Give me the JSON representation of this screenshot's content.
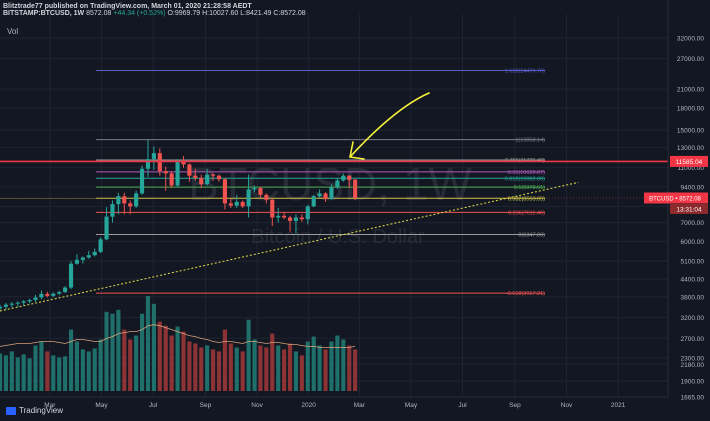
{
  "header": {
    "author_line": "Blitztrade77 published on TradingView.com, March 01, 2020 21:28:58 AEDT",
    "symbol": "BITSTAMP:BTCUSD, 1W",
    "last": "8572.08",
    "change": "+44.34 (+0.52%)",
    "ohlc": "O:9969.79 H:10027.60 L:8421.49 C:8572.08"
  },
  "volume_label": "Vol",
  "brand": "TradingView",
  "watermark": {
    "ticker": "BTCUSD, 1W",
    "description": "Bitcoin / U.S. Dollar"
  },
  "colors": {
    "background": "#131722",
    "up": "#26a69a",
    "down": "#ef5350",
    "resistance": "#f23645",
    "trendline": "#e5e04a",
    "arrow": "#f4f03c",
    "price_tag": "#f23645"
  },
  "price_tags": {
    "resistance": "11585.04",
    "current": "BTCUSD • 8572.08",
    "countdown": "13:31:04"
  },
  "chart_data": {
    "type": "candlestick",
    "scale": "log",
    "ylim": [
      1665,
      39000
    ],
    "y_ticks": [
      32000.0,
      27000.0,
      21000.0,
      18000.0,
      15000.0,
      13000.0,
      11000.0,
      9400.0,
      8000.0,
      7000.0,
      6000.0,
      5100.0,
      4400.0,
      3800.0,
      3200.0,
      2700.0,
      2300.0,
      2180.0,
      1900.0,
      1665.0
    ],
    "x_ticks": [
      {
        "label": "Mar",
        "date": "2019-03-01"
      },
      {
        "label": "May",
        "date": "2019-05-01"
      },
      {
        "label": "Jul",
        "date": "2019-07-01"
      },
      {
        "label": "Sep",
        "date": "2019-09-01"
      },
      {
        "label": "Nov",
        "date": "2019-11-01"
      },
      {
        "label": "2020",
        "date": "2020-01-01"
      },
      {
        "label": "Mar",
        "date": "2020-03-01"
      },
      {
        "label": "May",
        "date": "2020-05-01"
      },
      {
        "label": "Jul",
        "date": "2020-07-01"
      },
      {
        "label": "Sep",
        "date": "2020-09-01"
      },
      {
        "label": "Nov",
        "date": "2020-11-01"
      },
      {
        "label": "2021",
        "date": "2021-01-01"
      }
    ],
    "fib_levels": [
      {
        "label": "1.618(24479.70)",
        "value": 24479.7,
        "color": "#5b5fc7"
      },
      {
        "label": "1(13858.14)",
        "value": 13858.14,
        "color": "#787b86"
      },
      {
        "label": "0.786(11725.48)",
        "value": 11725.48,
        "color": "#9c9c9c"
      },
      {
        "label": "0.65(10628.87)",
        "value": 10628.87,
        "color": "#b05ac0"
      },
      {
        "label": "0.618(10082.86)",
        "value": 10082.86,
        "color": "#26a69a"
      },
      {
        "label": "0.5(9378.61)",
        "value": 9378.61,
        "color": "#4caf50"
      },
      {
        "label": "0.382(8553.05)",
        "value": 8553.05,
        "color": "#c9c94a"
      },
      {
        "label": "0.236(7611.46)",
        "value": 7611.46,
        "color": "#ef5350"
      },
      {
        "label": "0(6347.06)",
        "value": 6347.06,
        "color": "#9c9c9c"
      },
      {
        "label": "-0.618(3917.21)",
        "value": 3917.21,
        "color": "#ef5350"
      }
    ],
    "resistance": 11585.04,
    "trendline": [
      {
        "date": "2019-01-01",
        "price": 3380
      },
      {
        "date": "2020-11-15",
        "price": 9750
      }
    ],
    "candles": [
      {
        "date": "2019-01-01",
        "o": 3450,
        "h": 3560,
        "l": 3400,
        "c": 3500
      },
      {
        "date": "2019-01-08",
        "o": 3500,
        "h": 3610,
        "l": 3420,
        "c": 3560
      },
      {
        "date": "2019-01-15",
        "o": 3560,
        "h": 3640,
        "l": 3480,
        "c": 3590
      },
      {
        "date": "2019-01-22",
        "o": 3590,
        "h": 3660,
        "l": 3500,
        "c": 3620
      },
      {
        "date": "2019-01-29",
        "o": 3620,
        "h": 3700,
        "l": 3540,
        "c": 3660
      },
      {
        "date": "2019-02-05",
        "o": 3660,
        "h": 3740,
        "l": 3600,
        "c": 3700
      },
      {
        "date": "2019-02-12",
        "o": 3700,
        "h": 3860,
        "l": 3640,
        "c": 3780
      },
      {
        "date": "2019-02-19",
        "o": 3780,
        "h": 4000,
        "l": 3720,
        "c": 3890
      },
      {
        "date": "2019-02-26",
        "o": 3890,
        "h": 3960,
        "l": 3780,
        "c": 3830
      },
      {
        "date": "2019-03-05",
        "o": 3830,
        "h": 3940,
        "l": 3790,
        "c": 3900
      },
      {
        "date": "2019-03-12",
        "o": 3900,
        "h": 4000,
        "l": 3860,
        "c": 3950
      },
      {
        "date": "2019-03-19",
        "o": 3950,
        "h": 4150,
        "l": 3920,
        "c": 4100
      },
      {
        "date": "2019-03-26",
        "o": 4100,
        "h": 5100,
        "l": 4050,
        "c": 4990
      },
      {
        "date": "2019-04-02",
        "o": 4990,
        "h": 5400,
        "l": 4950,
        "c": 5150
      },
      {
        "date": "2019-04-09",
        "o": 5150,
        "h": 5300,
        "l": 5000,
        "c": 5250
      },
      {
        "date": "2019-04-16",
        "o": 5250,
        "h": 5550,
        "l": 5200,
        "c": 5350
      },
      {
        "date": "2019-04-23",
        "o": 5350,
        "h": 5650,
        "l": 5300,
        "c": 5500
      },
      {
        "date": "2019-04-30",
        "o": 5500,
        "h": 6200,
        "l": 5450,
        "c": 6100
      },
      {
        "date": "2019-05-07",
        "o": 6100,
        "h": 7950,
        "l": 6050,
        "c": 7350
      },
      {
        "date": "2019-05-14",
        "o": 7350,
        "h": 8400,
        "l": 7000,
        "c": 8150
      },
      {
        "date": "2019-05-21",
        "o": 8150,
        "h": 8950,
        "l": 7500,
        "c": 8700
      },
      {
        "date": "2019-05-28",
        "o": 8700,
        "h": 8950,
        "l": 7500,
        "c": 8200
      },
      {
        "date": "2019-06-04",
        "o": 8200,
        "h": 8400,
        "l": 7500,
        "c": 8000
      },
      {
        "date": "2019-06-11",
        "o": 8000,
        "h": 9100,
        "l": 7900,
        "c": 8900
      },
      {
        "date": "2019-06-18",
        "o": 8900,
        "h": 11200,
        "l": 8800,
        "c": 10900
      },
      {
        "date": "2019-06-25",
        "o": 10900,
        "h": 13850,
        "l": 10200,
        "c": 11800
      },
      {
        "date": "2019-07-02",
        "o": 11800,
        "h": 13100,
        "l": 10800,
        "c": 12400
      },
      {
        "date": "2019-07-09",
        "o": 12400,
        "h": 12900,
        "l": 10300,
        "c": 10700
      },
      {
        "date": "2019-07-16",
        "o": 10700,
        "h": 11100,
        "l": 9100,
        "c": 10500
      },
      {
        "date": "2019-07-23",
        "o": 10500,
        "h": 10700,
        "l": 9300,
        "c": 9500
      },
      {
        "date": "2019-07-30",
        "o": 9500,
        "h": 11800,
        "l": 9400,
        "c": 11600
      },
      {
        "date": "2019-08-06",
        "o": 11600,
        "h": 12100,
        "l": 11000,
        "c": 11300
      },
      {
        "date": "2019-08-13",
        "o": 11300,
        "h": 11400,
        "l": 9800,
        "c": 10300
      },
      {
        "date": "2019-08-20",
        "o": 10300,
        "h": 10900,
        "l": 9900,
        "c": 10100
      },
      {
        "date": "2019-08-27",
        "o": 10100,
        "h": 10400,
        "l": 9300,
        "c": 9600
      },
      {
        "date": "2019-09-03",
        "o": 9600,
        "h": 10900,
        "l": 9500,
        "c": 10400
      },
      {
        "date": "2019-09-10",
        "o": 10400,
        "h": 10500,
        "l": 9900,
        "c": 10300
      },
      {
        "date": "2019-09-17",
        "o": 10300,
        "h": 10400,
        "l": 9800,
        "c": 10000
      },
      {
        "date": "2019-09-24",
        "o": 10000,
        "h": 10100,
        "l": 7800,
        "c": 8200
      },
      {
        "date": "2019-10-01",
        "o": 8200,
        "h": 8500,
        "l": 7900,
        "c": 8050
      },
      {
        "date": "2019-10-08",
        "o": 8050,
        "h": 8800,
        "l": 7900,
        "c": 8300
      },
      {
        "date": "2019-10-15",
        "o": 8300,
        "h": 8400,
        "l": 7900,
        "c": 8000
      },
      {
        "date": "2019-10-22",
        "o": 8000,
        "h": 10400,
        "l": 7300,
        "c": 9200
      },
      {
        "date": "2019-10-29",
        "o": 9200,
        "h": 9500,
        "l": 9000,
        "c": 9300
      },
      {
        "date": "2019-11-05",
        "o": 9300,
        "h": 9400,
        "l": 8600,
        "c": 8800
      },
      {
        "date": "2019-11-12",
        "o": 8800,
        "h": 8900,
        "l": 8200,
        "c": 8450
      },
      {
        "date": "2019-11-19",
        "o": 8450,
        "h": 8500,
        "l": 6800,
        "c": 7300
      },
      {
        "date": "2019-11-26",
        "o": 7300,
        "h": 7900,
        "l": 7000,
        "c": 7400
      },
      {
        "date": "2019-12-03",
        "o": 7400,
        "h": 7600,
        "l": 7200,
        "c": 7300
      },
      {
        "date": "2019-12-10",
        "o": 7300,
        "h": 7400,
        "l": 6500,
        "c": 7100
      },
      {
        "date": "2019-12-17",
        "o": 7100,
        "h": 7500,
        "l": 6400,
        "c": 7300
      },
      {
        "date": "2019-12-24",
        "o": 7300,
        "h": 7500,
        "l": 7050,
        "c": 7200
      },
      {
        "date": "2019-12-31",
        "o": 7200,
        "h": 8100,
        "l": 6900,
        "c": 8000
      },
      {
        "date": "2020-01-07",
        "o": 8000,
        "h": 8800,
        "l": 7950,
        "c": 8700
      },
      {
        "date": "2020-01-14",
        "o": 8700,
        "h": 9200,
        "l": 8600,
        "c": 8900
      },
      {
        "date": "2020-01-21",
        "o": 8900,
        "h": 9000,
        "l": 8300,
        "c": 8500
      },
      {
        "date": "2020-01-28",
        "o": 8500,
        "h": 9600,
        "l": 8450,
        "c": 9350
      },
      {
        "date": "2020-02-04",
        "o": 9350,
        "h": 10100,
        "l": 9250,
        "c": 9900
      },
      {
        "date": "2020-02-11",
        "o": 9900,
        "h": 10500,
        "l": 9800,
        "c": 10300
      },
      {
        "date": "2020-02-18",
        "o": 10300,
        "h": 10350,
        "l": 9300,
        "c": 9950
      },
      {
        "date": "2020-02-25",
        "o": 9969.79,
        "h": 10027.6,
        "l": 8421.49,
        "c": 8572.08
      }
    ],
    "volume_ma": [
      45,
      46,
      47,
      48,
      48,
      48,
      49,
      50,
      50,
      50,
      49,
      48,
      50,
      52,
      52,
      51,
      50,
      50,
      53,
      55,
      58,
      59,
      60,
      60,
      62,
      66,
      67,
      66,
      64,
      62,
      60,
      58,
      56,
      55,
      53,
      52,
      50,
      49,
      50,
      50,
      49,
      48,
      50,
      50,
      49,
      48,
      49,
      49,
      48,
      47,
      47,
      46,
      45,
      45,
      44,
      44,
      44,
      44,
      44,
      44,
      45
    ],
    "volumes": [
      38,
      36,
      40,
      34,
      37,
      33,
      46,
      50,
      40,
      36,
      34,
      35,
      62,
      50,
      42,
      40,
      43,
      52,
      80,
      78,
      82,
      62,
      52,
      56,
      78,
      96,
      88,
      70,
      66,
      56,
      65,
      60,
      50,
      48,
      44,
      46,
      42,
      40,
      62,
      48,
      44,
      40,
      72,
      52,
      46,
      44,
      58,
      46,
      42,
      48,
      40,
      36,
      50,
      55,
      46,
      42,
      50,
      56,
      52,
      46,
      42
    ]
  }
}
